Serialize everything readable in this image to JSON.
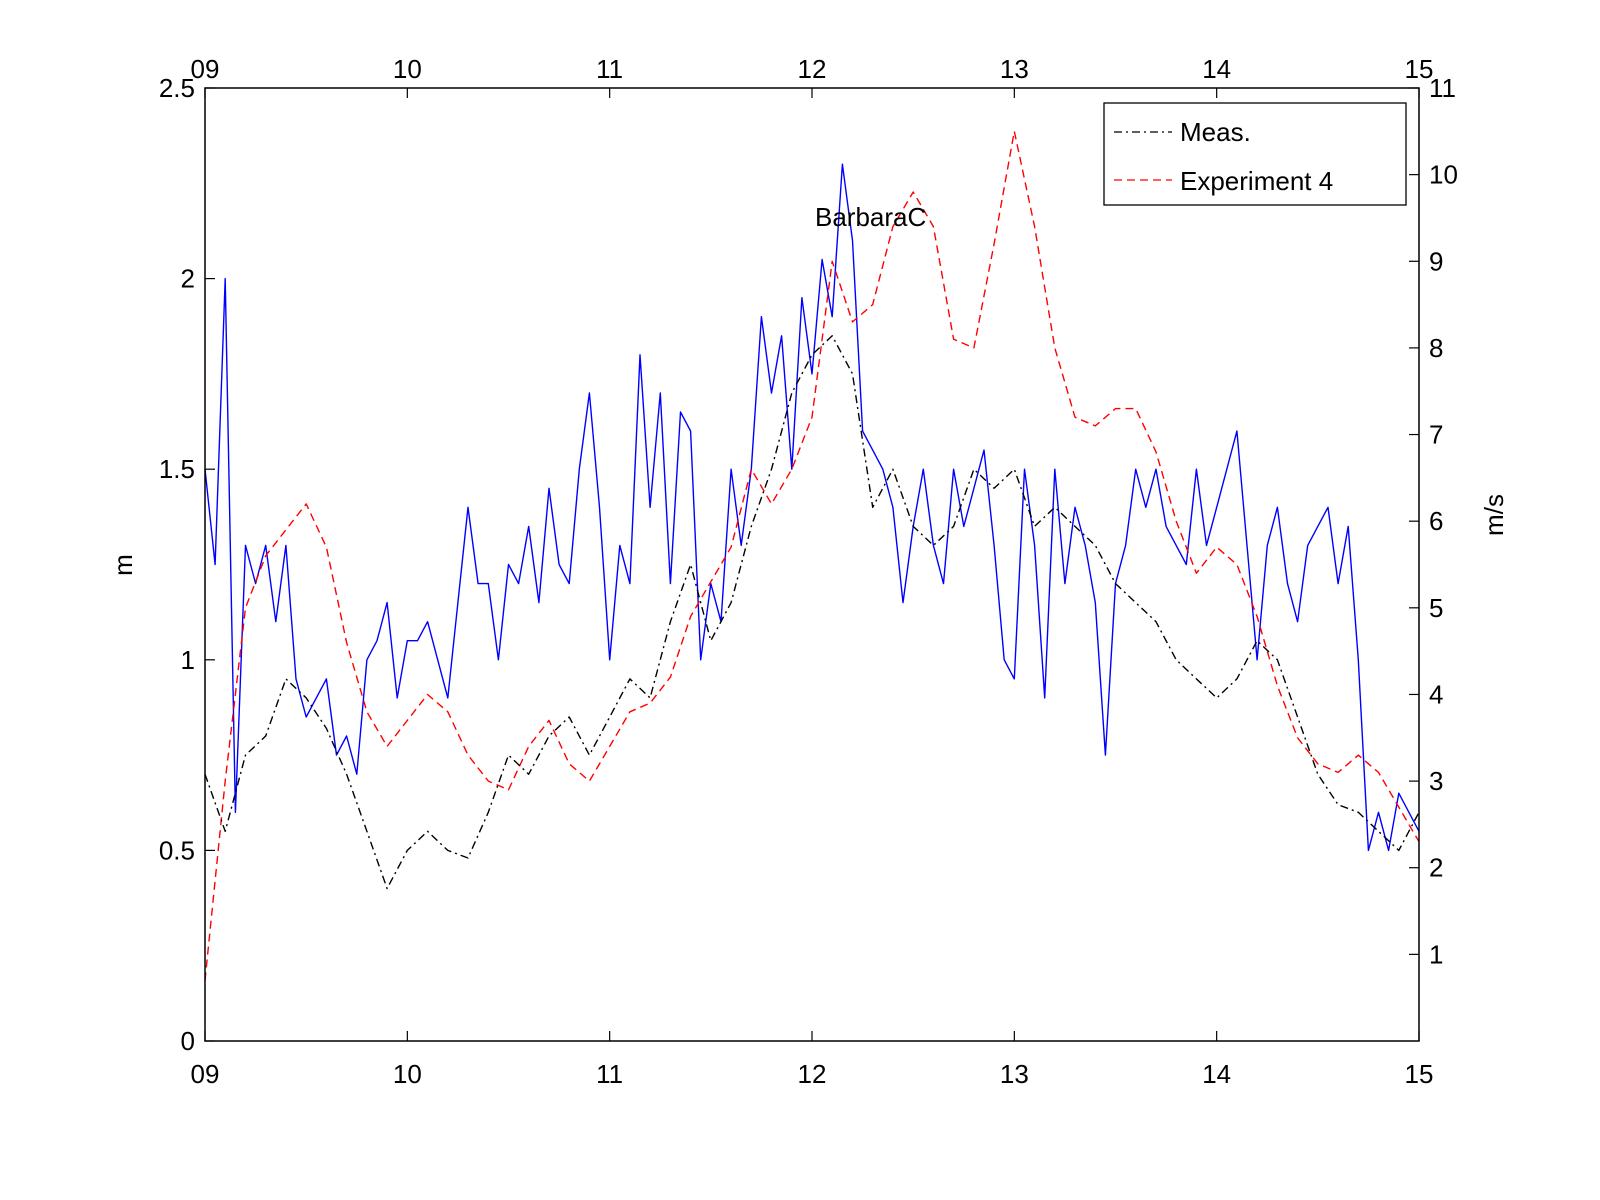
{
  "chart_data": {
    "type": "line",
    "annotation": "BarbaraC",
    "left_axis": {
      "label": "m",
      "range": [
        0,
        2.5
      ],
      "ticks": [
        "0",
        "0.5",
        "1",
        "1.5",
        "2",
        "2.5"
      ],
      "tick_values": [
        0,
        0.5,
        1,
        1.5,
        2,
        2.5
      ]
    },
    "right_axis": {
      "label": "m/s",
      "range": [
        0,
        11
      ],
      "ticks": [
        "1",
        "2",
        "3",
        "4",
        "5",
        "6",
        "7",
        "8",
        "9",
        "10",
        "11"
      ],
      "tick_values": [
        1,
        2,
        3,
        4,
        5,
        6,
        7,
        8,
        9,
        10,
        11
      ]
    },
    "x_axis": {
      "label": "",
      "range": [
        9,
        15
      ],
      "ticks": [
        "09",
        "10",
        "11",
        "12",
        "13",
        "14",
        "15"
      ],
      "tick_values": [
        9,
        10,
        11,
        12,
        13,
        14,
        15
      ]
    },
    "legend": {
      "placement": "top-right",
      "entries": [
        "Meas.",
        "Experiment 4"
      ]
    },
    "grid": false,
    "series": [
      {
        "name": "Meas.",
        "axis": "left",
        "color": "#000000",
        "style": "dash-dot",
        "x": [
          9.0,
          9.1,
          9.2,
          9.3,
          9.4,
          9.5,
          9.6,
          9.7,
          9.8,
          9.9,
          10.0,
          10.1,
          10.2,
          10.3,
          10.4,
          10.5,
          10.6,
          10.7,
          10.8,
          10.9,
          11.0,
          11.1,
          11.2,
          11.3,
          11.4,
          11.5,
          11.6,
          11.7,
          11.8,
          11.9,
          12.0,
          12.1,
          12.2,
          12.3,
          12.4,
          12.5,
          12.6,
          12.7,
          12.8,
          12.9,
          13.0,
          13.1,
          13.2,
          13.3,
          13.4,
          13.5,
          13.6,
          13.7,
          13.8,
          13.9,
          14.0,
          14.1,
          14.2,
          14.3,
          14.4,
          14.5,
          14.6,
          14.7,
          14.8,
          14.9,
          15.0
        ],
        "y": [
          0.7,
          0.55,
          0.75,
          0.8,
          0.95,
          0.9,
          0.82,
          0.7,
          0.55,
          0.4,
          0.5,
          0.55,
          0.5,
          0.48,
          0.6,
          0.75,
          0.7,
          0.8,
          0.85,
          0.75,
          0.85,
          0.95,
          0.9,
          1.1,
          1.25,
          1.05,
          1.15,
          1.35,
          1.5,
          1.7,
          1.8,
          1.85,
          1.75,
          1.4,
          1.5,
          1.35,
          1.3,
          1.35,
          1.5,
          1.45,
          1.5,
          1.35,
          1.4,
          1.35,
          1.3,
          1.2,
          1.15,
          1.1,
          1.0,
          0.95,
          0.9,
          0.95,
          1.05,
          1.0,
          0.85,
          0.7,
          0.62,
          0.6,
          0.55,
          0.5,
          0.6
        ]
      },
      {
        "name": "Experiment 4",
        "axis": "right",
        "color": "#ff0000",
        "style": "dashed",
        "x": [
          9.0,
          9.1,
          9.2,
          9.3,
          9.4,
          9.5,
          9.6,
          9.7,
          9.8,
          9.9,
          10.0,
          10.1,
          10.2,
          10.3,
          10.4,
          10.5,
          10.6,
          10.7,
          10.8,
          10.9,
          11.0,
          11.1,
          11.2,
          11.3,
          11.4,
          11.5,
          11.6,
          11.7,
          11.8,
          11.9,
          12.0,
          12.1,
          12.2,
          12.3,
          12.4,
          12.5,
          12.6,
          12.7,
          12.8,
          12.9,
          13.0,
          13.1,
          13.2,
          13.3,
          13.4,
          13.5,
          13.6,
          13.7,
          13.8,
          13.9,
          14.0,
          14.1,
          14.2,
          14.3,
          14.4,
          14.5,
          14.6,
          14.7,
          14.8,
          14.9,
          15.0
        ],
        "y": [
          0.7,
          3.0,
          5.0,
          5.6,
          5.9,
          6.2,
          5.7,
          4.6,
          3.8,
          3.4,
          3.7,
          4.0,
          3.8,
          3.3,
          3.0,
          2.9,
          3.4,
          3.7,
          3.2,
          3.0,
          3.4,
          3.8,
          3.9,
          4.2,
          4.9,
          5.3,
          5.7,
          6.6,
          6.2,
          6.6,
          7.2,
          9.0,
          8.3,
          8.5,
          9.4,
          9.8,
          9.4,
          8.1,
          8.0,
          9.2,
          10.5,
          9.4,
          8.0,
          7.2,
          7.1,
          7.3,
          7.3,
          6.8,
          6.0,
          5.4,
          5.7,
          5.5,
          4.9,
          4.1,
          3.5,
          3.2,
          3.1,
          3.3,
          3.1,
          2.7,
          2.3
        ]
      },
      {
        "name": "",
        "axis": "left",
        "color": "#0000ff",
        "style": "solid",
        "x": [
          9.0,
          9.05,
          9.1,
          9.15,
          9.2,
          9.25,
          9.3,
          9.35,
          9.4,
          9.45,
          9.5,
          9.55,
          9.6,
          9.65,
          9.7,
          9.75,
          9.8,
          9.85,
          9.9,
          9.95,
          10.0,
          10.05,
          10.1,
          10.15,
          10.2,
          10.25,
          10.3,
          10.35,
          10.4,
          10.45,
          10.5,
          10.55,
          10.6,
          10.65,
          10.7,
          10.75,
          10.8,
          10.85,
          10.9,
          10.95,
          11.0,
          11.05,
          11.1,
          11.15,
          11.2,
          11.25,
          11.3,
          11.35,
          11.4,
          11.45,
          11.5,
          11.55,
          11.6,
          11.65,
          11.7,
          11.75,
          11.8,
          11.85,
          11.9,
          11.95,
          12.0,
          12.05,
          12.1,
          12.15,
          12.2,
          12.25,
          12.3,
          12.35,
          12.4,
          12.45,
          12.5,
          12.55,
          12.6,
          12.65,
          12.7,
          12.75,
          12.8,
          12.85,
          12.9,
          12.95,
          13.0,
          13.05,
          13.1,
          13.15,
          13.2,
          13.25,
          13.3,
          13.35,
          13.4,
          13.45,
          13.5,
          13.55,
          13.6,
          13.65,
          13.7,
          13.75,
          13.8,
          13.85,
          13.9,
          13.95,
          14.0,
          14.05,
          14.1,
          14.15,
          14.2,
          14.25,
          14.3,
          14.35,
          14.4,
          14.45,
          14.5,
          14.55,
          14.6,
          14.65,
          14.7,
          14.75,
          14.8,
          14.85,
          14.9,
          14.95,
          15.0
        ],
        "y": [
          1.5,
          1.25,
          2.0,
          0.6,
          1.3,
          1.2,
          1.3,
          1.1,
          1.3,
          0.95,
          0.85,
          0.9,
          0.95,
          0.75,
          0.8,
          0.7,
          1.0,
          1.05,
          1.15,
          0.9,
          1.05,
          1.05,
          1.1,
          1.0,
          0.9,
          1.15,
          1.4,
          1.2,
          1.2,
          1.0,
          1.25,
          1.2,
          1.35,
          1.15,
          1.45,
          1.25,
          1.2,
          1.5,
          1.7,
          1.4,
          1.0,
          1.3,
          1.2,
          1.8,
          1.4,
          1.7,
          1.2,
          1.65,
          1.6,
          1.0,
          1.2,
          1.1,
          1.5,
          1.3,
          1.5,
          1.9,
          1.7,
          1.85,
          1.5,
          1.95,
          1.75,
          2.05,
          1.9,
          2.3,
          2.1,
          1.6,
          1.55,
          1.5,
          1.4,
          1.15,
          1.35,
          1.5,
          1.3,
          1.2,
          1.5,
          1.35,
          1.45,
          1.55,
          1.3,
          1.0,
          0.95,
          1.5,
          1.3,
          0.9,
          1.5,
          1.2,
          1.4,
          1.3,
          1.15,
          0.75,
          1.2,
          1.3,
          1.5,
          1.4,
          1.5,
          1.35,
          1.3,
          1.25,
          1.5,
          1.3,
          1.4,
          1.5,
          1.6,
          1.3,
          1.0,
          1.3,
          1.4,
          1.2,
          1.1,
          1.3,
          1.35,
          1.4,
          1.2,
          1.35,
          1.0,
          0.5,
          0.6,
          0.5,
          0.65,
          0.6,
          0.55
        ]
      }
    ]
  }
}
